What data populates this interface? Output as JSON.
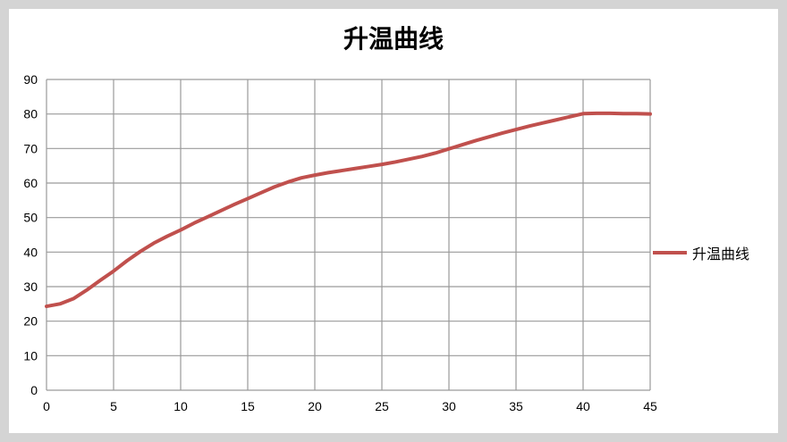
{
  "chart_data": {
    "type": "line",
    "title": "升温曲线",
    "xlabel": "",
    "ylabel": "",
    "xlim": [
      0,
      45
    ],
    "ylim": [
      0,
      90
    ],
    "xticks": [
      0,
      5,
      10,
      15,
      20,
      25,
      30,
      35,
      40,
      45
    ],
    "yticks": [
      0,
      10,
      20,
      30,
      40,
      50,
      60,
      70,
      80,
      90
    ],
    "grid": true,
    "legend_position": "right",
    "series": [
      {
        "name": "升温曲线",
        "color": "#c0504d",
        "x": [
          0,
          1,
          2,
          3,
          4,
          5,
          6,
          7,
          8,
          9,
          10,
          11,
          12,
          13,
          14,
          15,
          16,
          17,
          18,
          19,
          20,
          21,
          22,
          23,
          24,
          25,
          26,
          27,
          28,
          29,
          30,
          31,
          32,
          33,
          34,
          35,
          36,
          37,
          38,
          39,
          40,
          41,
          42,
          43,
          44,
          45
        ],
        "y": [
          24.3,
          25,
          26.5,
          29,
          31.8,
          34.5,
          37.5,
          40.2,
          42.6,
          44.6,
          46.4,
          48.4,
          50.2,
          52,
          53.8,
          55.5,
          57.2,
          58.9,
          60.3,
          61.5,
          62.3,
          63,
          63.6,
          64.2,
          64.8,
          65.4,
          66.1,
          66.9,
          67.7,
          68.7,
          69.9,
          71.1,
          72.3,
          73.4,
          74.5,
          75.5,
          76.5,
          77.4,
          78.3,
          79.2,
          80.1,
          80.2,
          80.2,
          80.1,
          80.1,
          80
        ]
      }
    ]
  }
}
